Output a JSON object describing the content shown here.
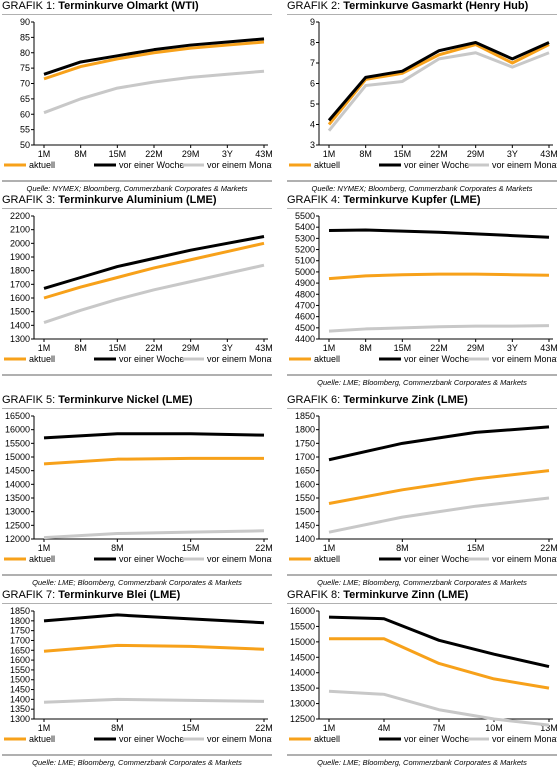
{
  "colors": {
    "aktuell": "#F7A11A",
    "week": "#000000",
    "month": "#C8C8C8"
  },
  "panels": [
    {
      "grafik_label": "GRAFIK 1:",
      "title": "Terminkurve Olmarkt (WTI)",
      "source": "Quelle: NYMEX; Bloomberg, Commerzbank Corporates & Markets",
      "chart_data": {
        "type": "line",
        "x": [
          0,
          1,
          2,
          3,
          4,
          5,
          6
        ],
        "x_ticks": [
          "1M",
          "8M",
          "15M",
          "22M",
          "29M",
          "3Y",
          "43M"
        ],
        "ylim": [
          50,
          90
        ],
        "y_ticks": [
          50,
          55,
          60,
          65,
          70,
          75,
          80,
          85,
          90
        ],
        "series": [
          {
            "name": "aktuell",
            "values": [
              71.5,
              75.5,
              78,
              80,
              81.5,
              82.5,
              83.5
            ]
          },
          {
            "name": "vor einer Woche",
            "values": [
              73,
              77,
              79,
              81,
              82.5,
              83.5,
              84.5
            ]
          },
          {
            "name": "vor einem Monat",
            "values": [
              60.5,
              65,
              68.5,
              70.5,
              72,
              73,
              74
            ]
          }
        ]
      }
    },
    {
      "grafik_label": "GRAFIK 2:",
      "title": "Terminkurve Gasmarkt (Henry Hub)",
      "source": "Quelle: NYMEX; Bloomberg, Commerzbank Corporates & Markets",
      "chart_data": {
        "type": "line",
        "x": [
          0,
          1,
          2,
          3,
          4,
          5,
          6
        ],
        "x_ticks": [
          "1M",
          "8M",
          "15M",
          "22M",
          "29M",
          "3Y",
          "43M"
        ],
        "ylim": [
          3,
          9
        ],
        "y_ticks": [
          3,
          4,
          5,
          6,
          7,
          8,
          9
        ],
        "series": [
          {
            "name": "aktuell",
            "values": [
              4.0,
              6.2,
              6.5,
              7.4,
              7.9,
              7.0,
              7.9
            ]
          },
          {
            "name": "vor einer Woche",
            "values": [
              4.2,
              6.3,
              6.6,
              7.6,
              8.0,
              7.2,
              8.0
            ]
          },
          {
            "name": "vor einem Monat",
            "values": [
              3.7,
              5.9,
              6.1,
              7.2,
              7.5,
              6.8,
              7.5
            ]
          }
        ]
      }
    },
    {
      "grafik_label": "GRAFIK 3:",
      "title": "Terminkurve Aluminium (LME)",
      "source": "",
      "chart_data": {
        "type": "line",
        "x": [
          0,
          1,
          2,
          3,
          4,
          5,
          6
        ],
        "x_ticks": [
          "1M",
          "8M",
          "15M",
          "22M",
          "29M",
          "3Y",
          "43M"
        ],
        "ylim": [
          1300,
          2200
        ],
        "y_ticks": [
          1300,
          1400,
          1500,
          1600,
          1700,
          1800,
          1900,
          2000,
          2100,
          2200
        ],
        "series": [
          {
            "name": "aktuell",
            "values": [
              1600,
              1680,
              1750,
              1820,
              1880,
              1940,
              2000
            ]
          },
          {
            "name": "vor einer Woche",
            "values": [
              1670,
              1750,
              1830,
              1890,
              1950,
              2000,
              2050
            ]
          },
          {
            "name": "vor einem Monat",
            "values": [
              1420,
              1510,
              1590,
              1660,
              1720,
              1780,
              1840
            ]
          }
        ]
      }
    },
    {
      "grafik_label": "GRAFIK 4:",
      "title": "Terminkurve Kupfer (LME)",
      "source": "Quelle: LME; Bloomberg, Commerzbank Corporates & Markets",
      "chart_data": {
        "type": "line",
        "x": [
          0,
          1,
          2,
          3,
          4,
          5,
          6
        ],
        "x_ticks": [
          "1M",
          "8M",
          "15M",
          "22M",
          "29M",
          "3Y",
          "43M"
        ],
        "ylim": [
          4400,
          5500
        ],
        "y_ticks": [
          4400,
          4500,
          4600,
          4700,
          4800,
          4900,
          5000,
          5100,
          5200,
          5300,
          5400,
          5500
        ],
        "series": [
          {
            "name": "aktuell",
            "values": [
              4940,
              4965,
              4975,
              4980,
              4980,
              4975,
              4970
            ]
          },
          {
            "name": "vor einer Woche",
            "values": [
              5370,
              5375,
              5365,
              5355,
              5340,
              5325,
              5310
            ]
          },
          {
            "name": "vor einem Monat",
            "values": [
              4470,
              4490,
              4500,
              4510,
              4515,
              4515,
              4520
            ]
          }
        ]
      }
    },
    {
      "grafik_label": "GRAFIK 5:",
      "title": "Terminkurve Nickel (LME)",
      "source": "Quelle: LME; Bloomberg, Commerzbank Corporates & Markets",
      "chart_data": {
        "type": "line",
        "x": [
          0,
          1,
          2,
          3
        ],
        "x_ticks": [
          "1M",
          "8M",
          "15M",
          "22M"
        ],
        "ylim": [
          12000,
          16500
        ],
        "y_ticks": [
          12000,
          12500,
          13000,
          13500,
          14000,
          14500,
          15000,
          15500,
          16000,
          16500
        ],
        "series": [
          {
            "name": "aktuell",
            "values": [
              14750,
              14920,
              14950,
              14950
            ]
          },
          {
            "name": "vor einer Woche",
            "values": [
              15700,
              15850,
              15850,
              15800
            ]
          },
          {
            "name": "vor einem Monat",
            "values": [
              12050,
              12200,
              12250,
              12300
            ]
          }
        ]
      }
    },
    {
      "grafik_label": "GRAFIK 6:",
      "title": "Terminkurve Zink (LME)",
      "source": "Quelle: LME; Bloomberg, Commerzbank Corporates & Markets",
      "chart_data": {
        "type": "line",
        "x": [
          0,
          1,
          2,
          3
        ],
        "x_ticks": [
          "1M",
          "8M",
          "15M",
          "22M"
        ],
        "ylim": [
          1400,
          1850
        ],
        "y_ticks": [
          1400,
          1450,
          1500,
          1550,
          1600,
          1650,
          1700,
          1750,
          1800,
          1850
        ],
        "series": [
          {
            "name": "aktuell",
            "values": [
              1530,
              1580,
              1620,
              1650
            ]
          },
          {
            "name": "vor einer Woche",
            "values": [
              1690,
              1750,
              1790,
              1810
            ]
          },
          {
            "name": "vor einem Monat",
            "values": [
              1425,
              1480,
              1520,
              1550
            ]
          }
        ]
      }
    },
    {
      "grafik_label": "GRAFIK 7:",
      "title": "Terminkurve Blei (LME)",
      "source": "Quelle: LME; Bloomberg, Commerzbank Corporates & Markets",
      "chart_data": {
        "type": "line",
        "x": [
          0,
          1,
          2,
          3
        ],
        "x_ticks": [
          "1M",
          "8M",
          "15M",
          "22M"
        ],
        "ylim": [
          1300,
          1850
        ],
        "y_ticks": [
          1300,
          1350,
          1400,
          1450,
          1500,
          1550,
          1600,
          1650,
          1700,
          1750,
          1800,
          1850
        ],
        "series": [
          {
            "name": "aktuell",
            "values": [
              1645,
              1675,
              1670,
              1655
            ]
          },
          {
            "name": "vor einer Woche",
            "values": [
              1800,
              1830,
              1810,
              1790
            ]
          },
          {
            "name": "vor einem Monat",
            "values": [
              1385,
              1400,
              1395,
              1390
            ]
          }
        ]
      }
    },
    {
      "grafik_label": "GRAFIK 8:",
      "title": "Terminkurve Zinn (LME)",
      "source": "Quelle: LME; Bloomberg, Commerzbank Corporates & Markets",
      "chart_data": {
        "type": "line",
        "x": [
          0,
          1,
          2,
          3,
          4
        ],
        "x_ticks": [
          "1M",
          "4M",
          "7M",
          "10M",
          "13M"
        ],
        "ylim": [
          12500,
          16000
        ],
        "y_ticks": [
          12500,
          13000,
          13500,
          14000,
          14500,
          15000,
          15500,
          16000
        ],
        "series": [
          {
            "name": "aktuell",
            "values": [
              15100,
              15100,
              14300,
              13800,
              13500
            ]
          },
          {
            "name": "vor einer Woche",
            "values": [
              15800,
              15750,
              15050,
              14600,
              14200
            ]
          },
          {
            "name": "vor einem Monat",
            "values": [
              13400,
              13300,
              12800,
              12500,
              12300
            ]
          }
        ]
      }
    }
  ]
}
